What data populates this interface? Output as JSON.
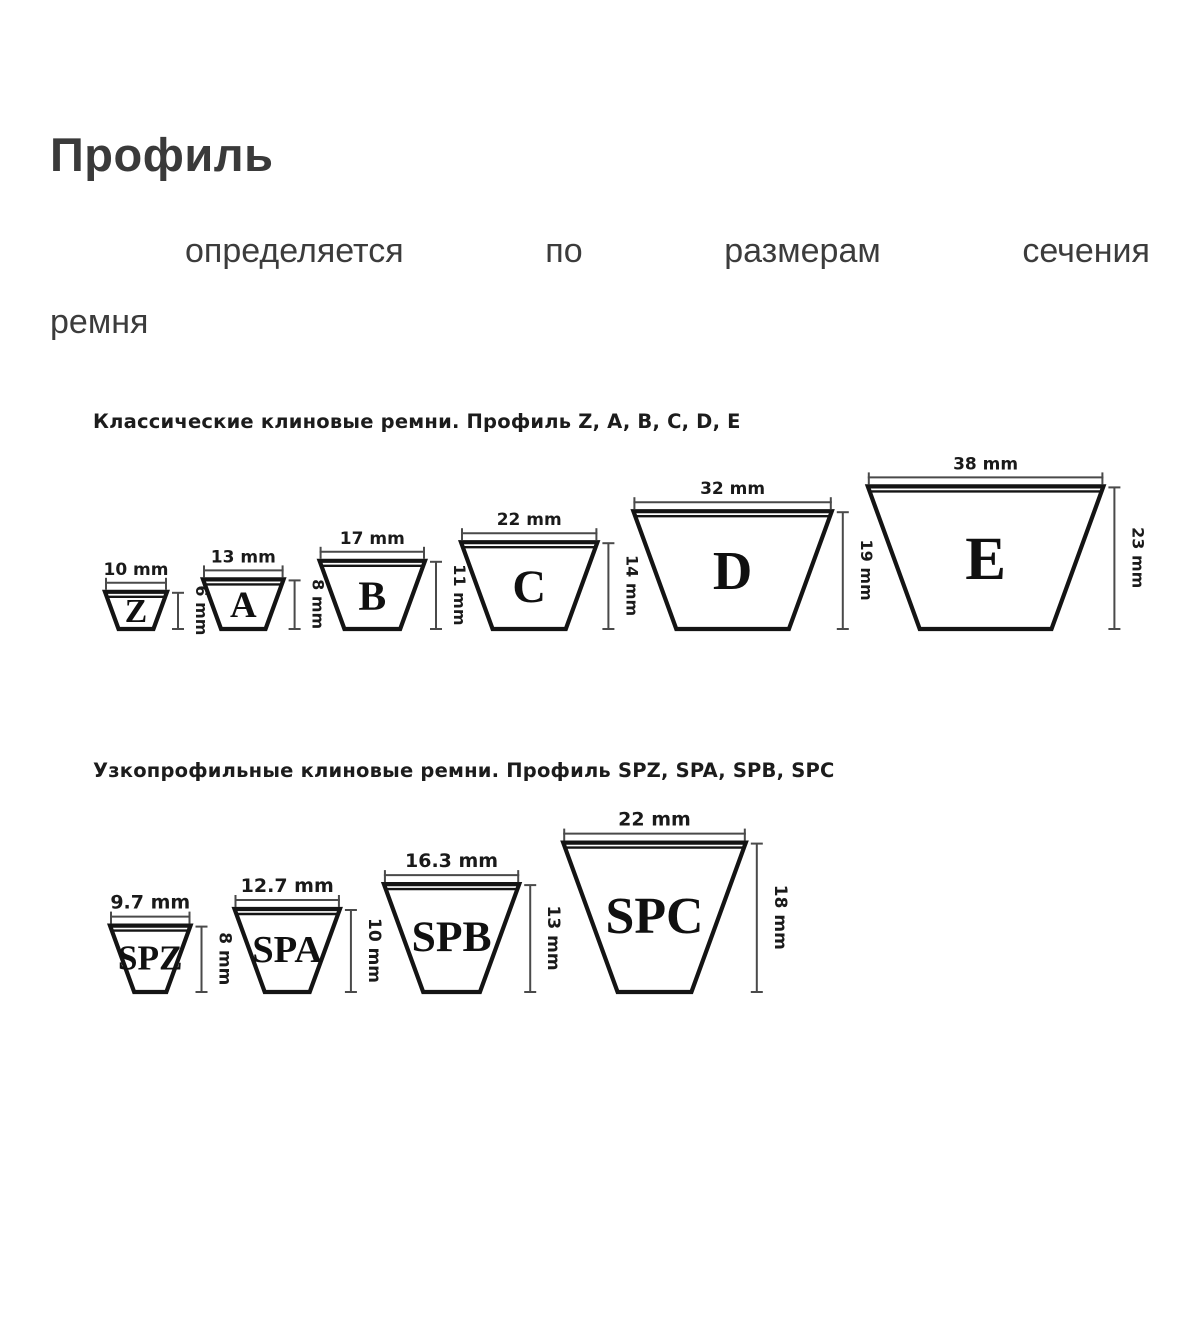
{
  "page": {
    "title": "Профиль",
    "subtitle": "определяется по размерам сечения ремня"
  },
  "chart_data": [
    {
      "type": "diagram",
      "title": "Классические клиновые ремни. Профиль Z, A, B, C, D, E",
      "unit": "mm",
      "belts": [
        {
          "label": "Z",
          "top_width_mm": 10,
          "height_mm": 6,
          "width_label": "10 mm",
          "height_label": "6 mm"
        },
        {
          "label": "A",
          "top_width_mm": 13,
          "height_mm": 8,
          "width_label": "13 mm",
          "height_label": "8 mm"
        },
        {
          "label": "B",
          "top_width_mm": 17,
          "height_mm": 11,
          "width_label": "17 mm",
          "height_label": "11 mm"
        },
        {
          "label": "C",
          "top_width_mm": 22,
          "height_mm": 14,
          "width_label": "22 mm",
          "height_label": "14 mm"
        },
        {
          "label": "D",
          "top_width_mm": 32,
          "height_mm": 19,
          "width_label": "32 mm",
          "height_label": "19 mm"
        },
        {
          "label": "E",
          "top_width_mm": 38,
          "height_mm": 23,
          "width_label": "38 mm",
          "height_label": "23 mm"
        }
      ]
    },
    {
      "type": "diagram",
      "title": "Узкопрофильные клиновые ремни. Профиль SPZ, SPA, SPB, SPC",
      "unit": "mm",
      "belts": [
        {
          "label": "SPZ",
          "top_width_mm": 9.7,
          "height_mm": 8,
          "width_label": "9.7 mm",
          "height_label": "8 mm"
        },
        {
          "label": "SPA",
          "top_width_mm": 12.7,
          "height_mm": 10,
          "width_label": "12.7 mm",
          "height_label": "10 mm"
        },
        {
          "label": "SPB",
          "top_width_mm": 16.3,
          "height_mm": 13,
          "width_label": "16.3 mm",
          "height_label": "13 mm"
        },
        {
          "label": "SPC",
          "top_width_mm": 22,
          "height_mm": 18,
          "width_label": "22 mm",
          "height_label": "18 mm"
        }
      ]
    }
  ],
  "colors": {
    "text": "#3c3c3c",
    "diagram_ink": "#141414",
    "dim_line": "#4a4a4a",
    "background": "#ffffff"
  }
}
